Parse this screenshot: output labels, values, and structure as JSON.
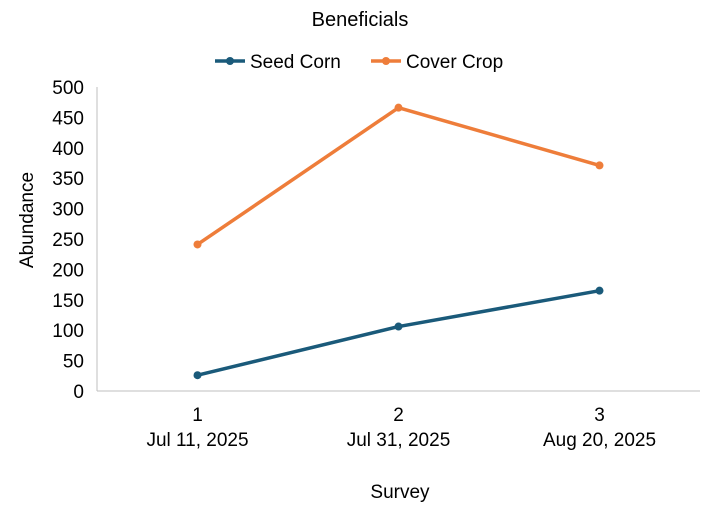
{
  "chart_data": {
    "type": "line",
    "title": "Beneficials",
    "xlabel": "Survey",
    "ylabel": "Abundance",
    "ylim": [
      0,
      500
    ],
    "yticks": [
      "0",
      "50",
      "100",
      "150",
      "200",
      "250",
      "300",
      "350",
      "400",
      "450",
      "500"
    ],
    "categories": [
      {
        "survey": "1",
        "date": "Jul 11, 2025"
      },
      {
        "survey": "2",
        "date": "Jul 31, 2025"
      },
      {
        "survey": "3",
        "date": "Aug 20, 2025"
      }
    ],
    "series": [
      {
        "name": "Seed Corn",
        "color": "#1a5a7a",
        "values": [
          26,
          106,
          165
        ]
      },
      {
        "name": "Cover Crop",
        "color": "#ee7d3a",
        "values": [
          241,
          466,
          371
        ]
      }
    ],
    "grid": false,
    "legend_position": "top"
  }
}
